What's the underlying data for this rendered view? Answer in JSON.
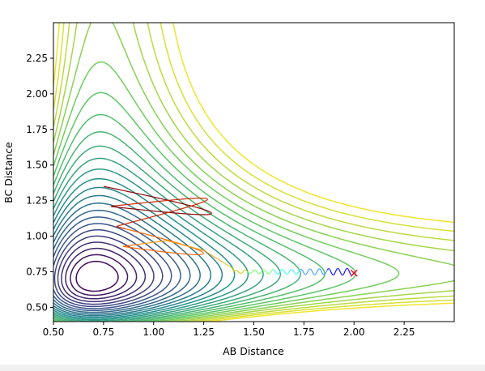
{
  "chart_data": {
    "type": "contour",
    "xlabel": "AB Distance",
    "ylabel": "BC Distance",
    "xlim": [
      0.5,
      2.5
    ],
    "ylim": [
      0.4,
      2.5
    ],
    "xticks": [
      "0.50",
      "0.75",
      "1.00",
      "1.25",
      "1.50",
      "1.75",
      "2.00",
      "2.25"
    ],
    "yticks": [
      "0.50",
      "0.75",
      "1.00",
      "1.25",
      "1.50",
      "1.75",
      "2.00",
      "2.25"
    ],
    "colormap": [
      "#440154",
      "#3b528b",
      "#21908d",
      "#5dc963",
      "#fde725"
    ],
    "contour_levels": 25,
    "surface": "LEPS potential energy surface",
    "trajectory": {
      "start": [
        0.75,
        1.35
      ],
      "end": [
        2.0,
        0.74
      ],
      "end_marker": "x",
      "end_marker_color": "#e8142a",
      "colors": [
        "#8b0000",
        "#cc2200",
        "#ff6600",
        "#ff9900",
        "#cccc00",
        "#66ff66",
        "#33ffff",
        "#3399ff",
        "#0000ff"
      ]
    }
  },
  "figure": {
    "background": "#ffffff",
    "window_background": "#f0f0f0"
  }
}
